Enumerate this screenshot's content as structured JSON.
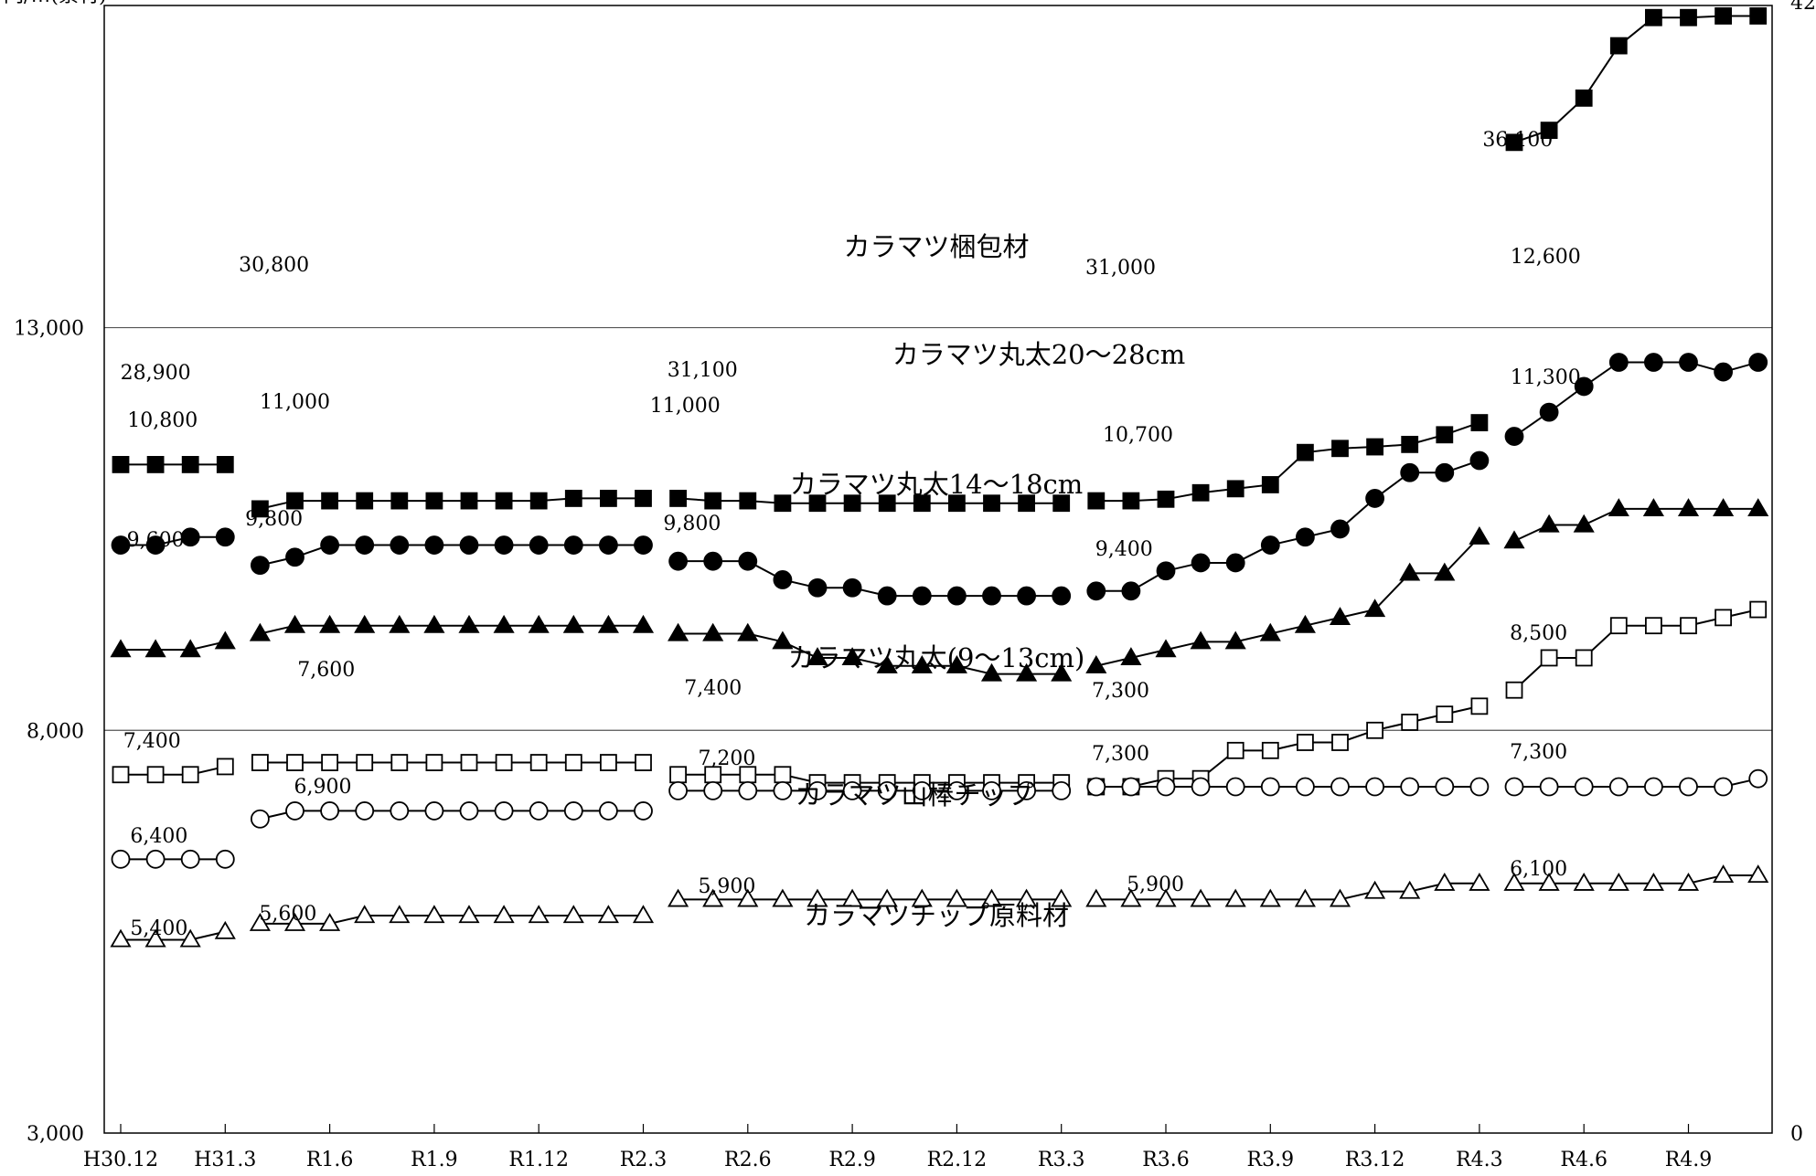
{
  "chart_data": {
    "type": "line",
    "y_unit_label": "円/㎥(素材)",
    "ylim": [
      3000,
      17000
    ],
    "y_ticks": [
      "3,000",
      "8,000",
      "13,000"
    ],
    "y_tick_values": [
      3000,
      8000,
      13000
    ],
    "y2_ticks": [
      "0",
      "42"
    ],
    "x_tick_labels": [
      "H30.12",
      "H31.3",
      "R1.6",
      "R1.9",
      "R1.12",
      "R2.3",
      "R2.6",
      "R2.9",
      "R2.12",
      "R3.3",
      "R3.6",
      "R3.9",
      "R3.12",
      "R4.3",
      "R4.6",
      "R4.9"
    ],
    "grid_y": [
      8000,
      13000
    ],
    "x_count": 48,
    "segments": [
      [
        0,
        3
      ],
      [
        4,
        15
      ],
      [
        16,
        27
      ],
      [
        28,
        39
      ],
      [
        40,
        47
      ]
    ],
    "series": [
      {
        "name": "カラマツ梱包材",
        "marker": "square-filled",
        "values": [
          11300,
          11300,
          11300,
          11300,
          10750,
          10850,
          10850,
          10850,
          10850,
          10850,
          10850,
          10850,
          10850,
          10880,
          10880,
          10880,
          10880,
          10850,
          10850,
          10820,
          10820,
          10820,
          10820,
          10820,
          10820,
          10820,
          10820,
          10820,
          10850,
          10850,
          10870,
          10950,
          11000,
          11050,
          11450,
          11500,
          11520,
          11550,
          11670,
          11820,
          15300,
          15450,
          15850,
          16500,
          16850,
          16850,
          16870,
          16870
        ]
      },
      {
        "name": "カラマツ丸太20～28cm",
        "marker": "circle-filled",
        "values": [
          10300,
          10300,
          10400,
          10400,
          10050,
          10150,
          10300,
          10300,
          10300,
          10300,
          10300,
          10300,
          10300,
          10300,
          10300,
          10300,
          10100,
          10100,
          10100,
          9870,
          9770,
          9770,
          9670,
          9670,
          9670,
          9670,
          9670,
          9670,
          9730,
          9730,
          9980,
          10080,
          10080,
          10300,
          10400,
          10500,
          10880,
          11200,
          11200,
          11350,
          11650,
          11950,
          12270,
          12570,
          12570,
          12570,
          12450,
          12570
        ]
      },
      {
        "name": "カラマツ丸太14～18cm",
        "marker": "triangle-filled",
        "values": [
          9000,
          9000,
          9000,
          9100,
          9200,
          9300,
          9300,
          9300,
          9300,
          9300,
          9300,
          9300,
          9300,
          9300,
          9300,
          9300,
          9200,
          9200,
          9200,
          9100,
          8900,
          8900,
          8800,
          8800,
          8800,
          8700,
          8700,
          8700,
          8800,
          8900,
          9000,
          9100,
          9100,
          9200,
          9300,
          9400,
          9500,
          9950,
          9950,
          10400,
          10350,
          10550,
          10550,
          10750,
          10750,
          10750,
          10750,
          10750
        ]
      },
      {
        "name": "カラマツ丸太(9～13cm)",
        "marker": "square-open",
        "values": [
          7450,
          7450,
          7450,
          7550,
          7600,
          7600,
          7600,
          7600,
          7600,
          7600,
          7600,
          7600,
          7600,
          7600,
          7600,
          7600,
          7450,
          7450,
          7450,
          7450,
          7350,
          7350,
          7350,
          7350,
          7350,
          7350,
          7350,
          7350,
          7300,
          7300,
          7400,
          7400,
          7750,
          7750,
          7850,
          7850,
          8000,
          8100,
          8200,
          8300,
          8500,
          8900,
          8900,
          9300,
          9300,
          9300,
          9400,
          9500
        ]
      },
      {
        "name": "カラマツ山棒チップ",
        "marker": "circle-open",
        "values": [
          6400,
          6400,
          6400,
          6400,
          6900,
          7000,
          7000,
          7000,
          7000,
          7000,
          7000,
          7000,
          7000,
          7000,
          7000,
          7000,
          7250,
          7250,
          7250,
          7250,
          7250,
          7250,
          7250,
          7250,
          7250,
          7250,
          7250,
          7250,
          7300,
          7300,
          7300,
          7300,
          7300,
          7300,
          7300,
          7300,
          7300,
          7300,
          7300,
          7300,
          7300,
          7300,
          7300,
          7300,
          7300,
          7300,
          7300,
          7400
        ]
      },
      {
        "name": "カラマツチップ原料材",
        "marker": "triangle-open",
        "values": [
          5400,
          5400,
          5400,
          5500,
          5600,
          5600,
          5600,
          5700,
          5700,
          5700,
          5700,
          5700,
          5700,
          5700,
          5700,
          5700,
          5900,
          5900,
          5900,
          5900,
          5900,
          5900,
          5900,
          5900,
          5900,
          5900,
          5900,
          5900,
          5900,
          5900,
          5900,
          5900,
          5900,
          5900,
          5900,
          5900,
          6000,
          6000,
          6100,
          6100,
          6100,
          6100,
          6100,
          6100,
          6100,
          6100,
          6200,
          6200
        ]
      }
    ],
    "annotations": [
      {
        "text": "28,900",
        "x": 1
      },
      {
        "text": "30,800",
        "x": 4.4
      },
      {
        "text": "31,100",
        "x": 16.7
      },
      {
        "text": "31,000",
        "x": 28.7
      },
      {
        "text": "36,100",
        "x": 40.1
      },
      {
        "text": "10,800",
        "x": 1.2
      },
      {
        "text": "11,000",
        "x": 5
      },
      {
        "text": "11,000",
        "x": 16.2
      },
      {
        "text": "10,700",
        "x": 29.2
      },
      {
        "text": "12,600",
        "x": 40.9
      },
      {
        "text": "9,600",
        "x": 1
      },
      {
        "text": "9,800",
        "x": 4.4
      },
      {
        "text": "9,800",
        "x": 16.4
      },
      {
        "text": "9,400",
        "x": 28.8
      },
      {
        "text": "11,300",
        "x": 40.9
      },
      {
        "text": "7,400",
        "x": 0.9
      },
      {
        "text": "7,600",
        "x": 5.9
      },
      {
        "text": "7,400",
        "x": 17
      },
      {
        "text": "7,300",
        "x": 28.7
      },
      {
        "text": "8,500",
        "x": 40.7
      },
      {
        "text": "7,300",
        "x": 28.7
      },
      {
        "text": "6,900",
        "x": 5.8
      },
      {
        "text": "7,200",
        "x": 17.4
      },
      {
        "text": "7,300",
        "x": 40.7
      },
      {
        "text": "6,400",
        "x": 1.1
      },
      {
        "text": "5,600",
        "x": 4.8
      },
      {
        "text": "5,900",
        "x": 17.4
      },
      {
        "text": "5,900",
        "x": 29.7
      },
      {
        "text": "6,100",
        "x": 40.7
      },
      {
        "text": "5,400",
        "x": 1.1
      }
    ]
  }
}
